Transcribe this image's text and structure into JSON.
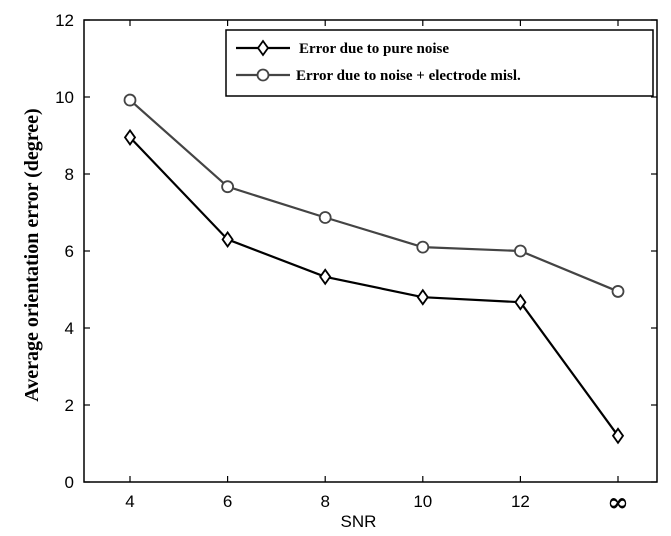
{
  "chart_data": {
    "type": "line",
    "xlabel": "SNR",
    "ylabel": "Average orientation error (degree)",
    "categories": [
      "4",
      "6",
      "8",
      "10",
      "12",
      "∞"
    ],
    "yticks": [
      "0",
      "2",
      "4",
      "6",
      "8",
      "10",
      "12"
    ],
    "ylim": [
      0,
      12
    ],
    "grid": false,
    "legend_position": "top-right",
    "series": [
      {
        "name": "Error due to pure noise",
        "marker": "diamond",
        "color": "#000000",
        "values": [
          8.95,
          6.3,
          5.33,
          4.8,
          4.67,
          1.2
        ]
      },
      {
        "name": "Error due to noise + electrode misl.",
        "marker": "circle",
        "color": "#444444",
        "values": [
          9.92,
          7.67,
          6.87,
          6.1,
          6.0,
          4.95
        ]
      }
    ]
  }
}
